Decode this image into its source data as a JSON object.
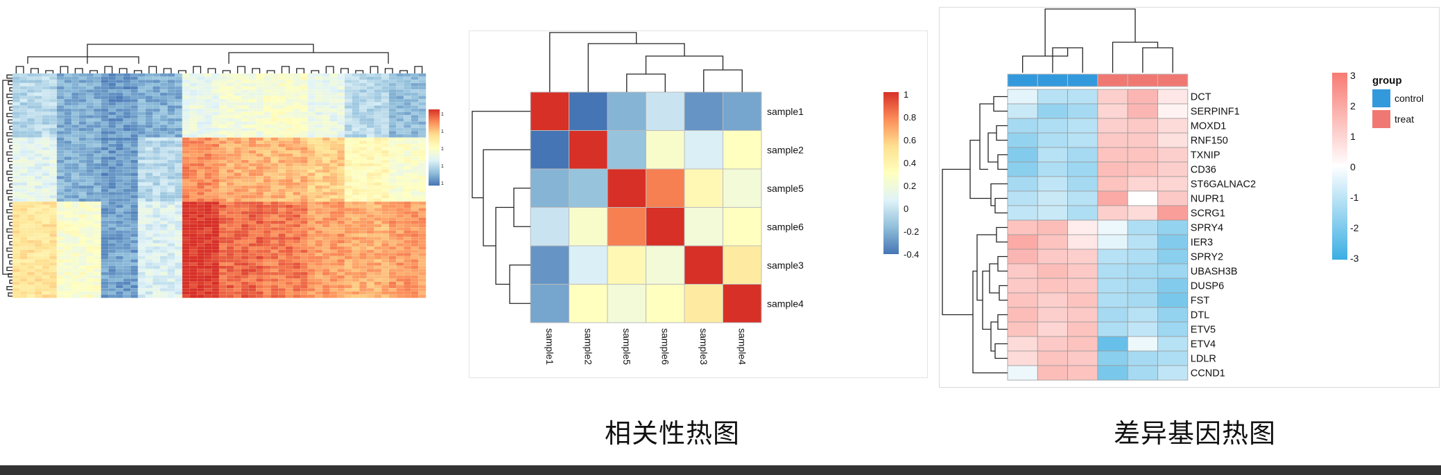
{
  "captions": {
    "correlation": "相关性热图",
    "differential": "差异基因热图"
  },
  "colors": {
    "rdylbu": [
      "#4575b4",
      "#91bfdb",
      "#e0f3f8",
      "#ffffbf",
      "#fee090",
      "#fc8d59",
      "#d73027"
    ],
    "blue_white_red": [
      "#3aaee3",
      "#ffffff",
      "#f87a73"
    ],
    "group_control": "#3399dd",
    "group_treat": "#f07873",
    "dendro": "#222222",
    "cell_border": "#9a9a9a"
  },
  "chart_data": [
    {
      "type": "heatmap",
      "name_hint": "overview-heatmap",
      "rows": 70,
      "cols": 56,
      "value_range": [
        95,
        185
      ],
      "colorbar_ticks": [
        180,
        160,
        140,
        120,
        100
      ],
      "row_blocks": [
        {
          "rows": 20,
          "levels": [
            1.5,
            0.8,
            0.5,
            0.8,
            2.3,
            2.6,
            2.8,
            2.3,
            1.5,
            1.0
          ]
        },
        {
          "rows": 20,
          "levels": [
            2.2,
            0.8,
            0.5,
            1.5,
            5.0,
            4.6,
            4.5,
            4.2,
            3.2,
            2.8
          ]
        },
        {
          "rows": 30,
          "levels": [
            3.8,
            2.8,
            0.6,
            2.0,
            6.0,
            5.4,
            5.2,
            4.8,
            4.6,
            4.8
          ]
        }
      ]
    },
    {
      "type": "heatmap",
      "name_hint": "correlation-heatmap",
      "rows": [
        "sample1",
        "sample2",
        "sample5",
        "sample6",
        "sample3",
        "sample4"
      ],
      "cols": [
        "sample1",
        "sample2",
        "sample5",
        "sample6",
        "sample3",
        "sample4"
      ],
      "values": [
        [
          1.0,
          -0.4,
          -0.2,
          0.0,
          -0.3,
          -0.25
        ],
        [
          -0.4,
          1.0,
          -0.15,
          0.25,
          0.05,
          0.3
        ],
        [
          -0.2,
          -0.15,
          1.0,
          0.8,
          0.35,
          0.2
        ],
        [
          0.0,
          0.25,
          0.8,
          1.0,
          0.2,
          0.3
        ],
        [
          -0.3,
          0.05,
          0.35,
          0.2,
          1.0,
          0.45
        ],
        [
          -0.25,
          0.3,
          0.2,
          0.3,
          0.45,
          1.0
        ]
      ],
      "value_range": [
        -0.4,
        1
      ],
      "colorbar_ticks": [
        "1",
        "0.8",
        "0.6",
        "0.4",
        "0.2",
        "0",
        "-0.2",
        "-0.4"
      ]
    },
    {
      "type": "heatmap",
      "name_hint": "differential-heatmap",
      "genes": [
        "DCT",
        "SERPINF1",
        "MOXD1",
        "RNF150",
        "TXNIP",
        "CD36",
        "ST6GALNAC2",
        "NUPR1",
        "SCRG1",
        "SPRY4",
        "IER3",
        "SPRY2",
        "UBASH3B",
        "DUSP6",
        "FST",
        "DTL",
        "ETV5",
        "ETV4",
        "LDLR",
        "CCND1"
      ],
      "columns": [
        "control",
        "control",
        "control",
        "treat",
        "treat",
        "treat"
      ],
      "values": [
        [
          -0.3,
          -0.8,
          -0.8,
          0.8,
          1.2,
          0.4
        ],
        [
          -0.6,
          -1.2,
          -1.0,
          0.7,
          1.2,
          0.2
        ],
        [
          -1.0,
          -0.9,
          -0.8,
          0.8,
          0.9,
          0.6
        ],
        [
          -1.2,
          -0.9,
          -0.8,
          0.9,
          0.9,
          0.5
        ],
        [
          -1.4,
          -0.8,
          -1.0,
          1.0,
          1.0,
          0.8
        ],
        [
          -1.3,
          -0.9,
          -1.1,
          1.1,
          1.0,
          0.8
        ],
        [
          -1.0,
          -0.7,
          -1.0,
          1.0,
          0.7,
          0.7
        ],
        [
          -0.8,
          -0.6,
          -0.8,
          1.4,
          0.0,
          0.9
        ],
        [
          -0.7,
          -0.6,
          -0.9,
          0.8,
          0.6,
          1.6
        ],
        [
          1.0,
          1.1,
          0.3,
          -0.2,
          -0.9,
          -1.2
        ],
        [
          1.4,
          1.0,
          0.4,
          -0.3,
          -0.8,
          -1.4
        ],
        [
          1.2,
          0.9,
          0.8,
          -0.8,
          -0.9,
          -1.3
        ],
        [
          0.9,
          1.1,
          0.9,
          -0.9,
          -1.0,
          -1.1
        ],
        [
          0.9,
          1.0,
          0.9,
          -0.9,
          -1.0,
          -1.4
        ],
        [
          1.0,
          0.8,
          1.0,
          -0.9,
          -1.0,
          -1.5
        ],
        [
          1.1,
          0.8,
          0.9,
          -1.0,
          -0.8,
          -1.2
        ],
        [
          1.0,
          0.7,
          1.0,
          -0.9,
          -0.7,
          -1.1
        ],
        [
          0.6,
          0.9,
          1.0,
          -1.7,
          -0.2,
          -0.8
        ],
        [
          0.6,
          1.0,
          0.9,
          -1.3,
          -1.0,
          -0.9
        ],
        [
          -0.2,
          1.1,
          1.0,
          -1.5,
          -1.0,
          -0.7
        ]
      ],
      "value_range": [
        -3,
        3
      ],
      "colorbar_ticks": [
        "3",
        "2",
        "1",
        "0",
        "-1",
        "-2",
        "-3"
      ],
      "legend": {
        "title": "group",
        "items": [
          {
            "label": "control",
            "color": "#3399dd"
          },
          {
            "label": "treat",
            "color": "#f07873"
          }
        ]
      }
    }
  ]
}
